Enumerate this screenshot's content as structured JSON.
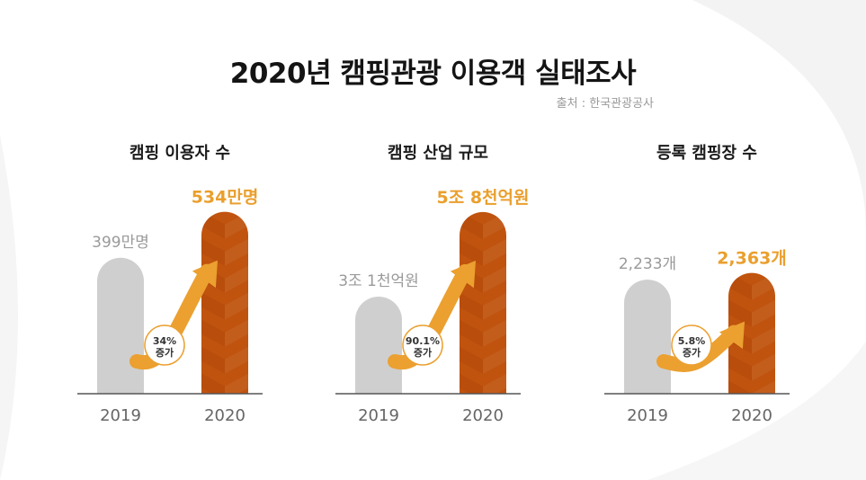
{
  "title": "2020년 캠핑관광 이용객 실태조사",
  "source": "출처 : 한국관광공사",
  "colors": {
    "bar_2019": "#cfcfcf",
    "bar_2020": "#c0530e",
    "bar_2020_dark": "#a8430a",
    "value_2020": "#ea9f2d",
    "value_2019": "#9a9a9a",
    "arrow": "#eba030",
    "axis": "#555555",
    "text": "#1a1a1a"
  },
  "chart_data": [
    {
      "type": "bar",
      "title": "캠핑 이용자 수",
      "categories": [
        "2019",
        "2020"
      ],
      "values": [
        399,
        534
      ],
      "value_labels": [
        "399만명",
        "534만명"
      ],
      "change_label": [
        "34%",
        "증가"
      ],
      "ylim": [
        0,
        570
      ]
    },
    {
      "type": "bar",
      "title": "캠핑 산업 규모",
      "categories": [
        "2019",
        "2020"
      ],
      "values": [
        3.1,
        5.8
      ],
      "value_labels": [
        "3조 1천억원",
        "5조 8천억원"
      ],
      "change_label": [
        "90.1%",
        "증가"
      ],
      "ylim": [
        0,
        6.2
      ]
    },
    {
      "type": "bar",
      "title": "등록 캠핑장 수",
      "categories": [
        "2019",
        "2020"
      ],
      "values": [
        2233,
        2363
      ],
      "value_labels": [
        "2,233개",
        "2,363개"
      ],
      "change_label": [
        "5.8%",
        "증가"
      ],
      "ylim": [
        0,
        3800
      ]
    }
  ]
}
